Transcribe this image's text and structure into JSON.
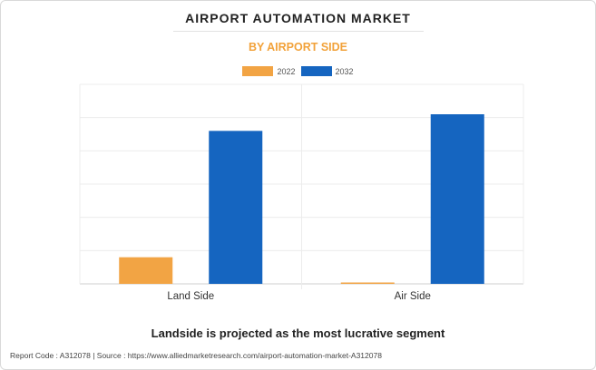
{
  "chart_data": {
    "type": "bar",
    "title": "AIRPORT AUTOMATION MARKET",
    "subtitle": "BY AIRPORT SIDE",
    "categories": [
      "Land Side",
      "Air Side"
    ],
    "series": [
      {
        "name": "2022",
        "color": "#f2a444",
        "values": [
          0.8,
          0.005
        ]
      },
      {
        "name": "2032",
        "color": "#1565c0",
        "values": [
          4.6,
          5.1
        ]
      }
    ],
    "ylim": [
      0,
      6
    ],
    "grid": true,
    "legend_position": "top-center"
  },
  "note": "Landside is projected as the most lucrative segment",
  "footer": "Report Code : A312078  |  Source : https://www.alliedmarketresearch.com/airport-automation-market-A312078"
}
